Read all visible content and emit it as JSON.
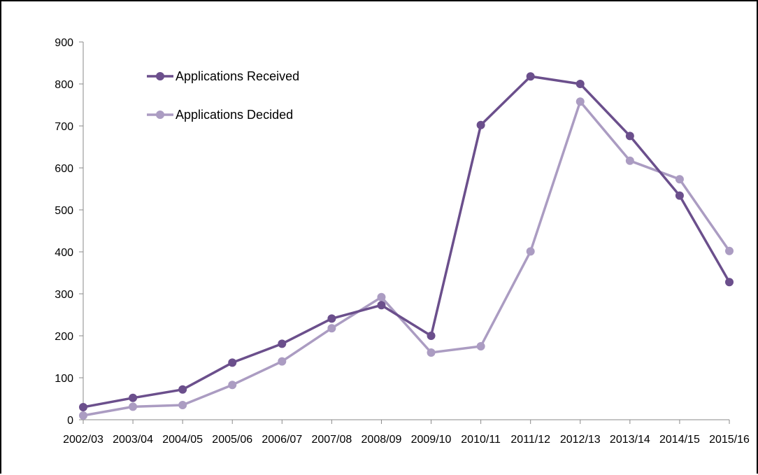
{
  "chart_data": {
    "type": "line",
    "title": "",
    "xlabel": "",
    "ylabel": "",
    "categories": [
      "2002/03",
      "2003/04",
      "2004/05",
      "2005/06",
      "2006/07",
      "2007/08",
      "2008/09",
      "2009/10",
      "2010/11",
      "2011/12",
      "2012/13",
      "2013/14",
      "2014/15",
      "2015/16"
    ],
    "ylim": [
      0,
      900
    ],
    "yticks": [
      0,
      100,
      200,
      300,
      400,
      500,
      600,
      700,
      800,
      900
    ],
    "grid": false,
    "legend_position": "top-left",
    "series": [
      {
        "name": "Applications Received",
        "color": "#6b4f8c",
        "values": [
          30,
          52,
          72,
          136,
          181,
          241,
          273,
          200,
          702,
          818,
          800,
          676,
          534,
          328
        ]
      },
      {
        "name": "Applications Decided",
        "color": "#ab9cc2",
        "values": [
          10,
          31,
          35,
          83,
          139,
          218,
          292,
          160,
          175,
          401,
          758,
          617,
          573,
          402
        ]
      }
    ]
  }
}
